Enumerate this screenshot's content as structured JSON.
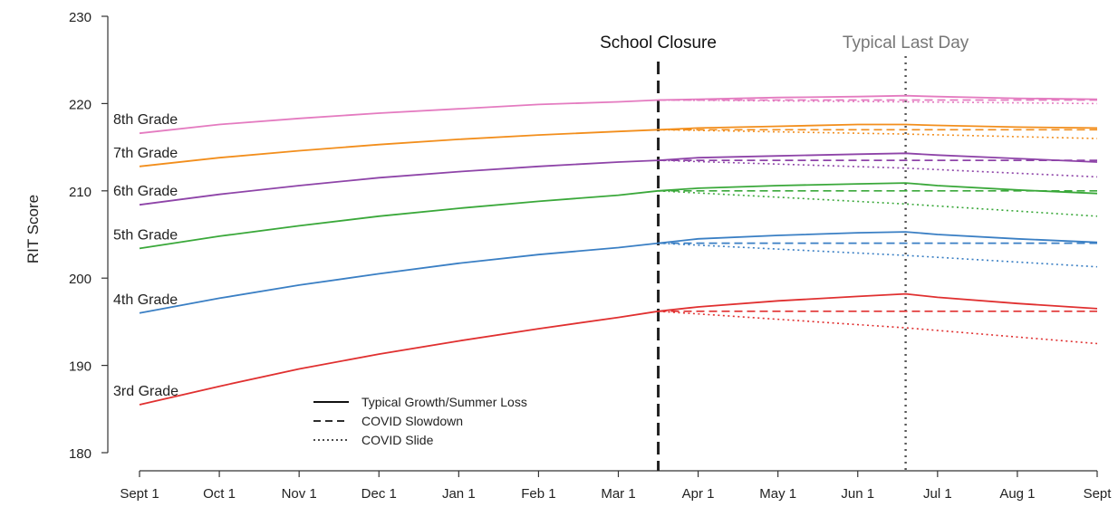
{
  "chart_data": {
    "type": "line",
    "title": "",
    "ylabel": "RIT Score",
    "xlabel": "",
    "ylim": [
      180,
      230
    ],
    "y_ticks": [
      180,
      190,
      200,
      210,
      220,
      230
    ],
    "x_ticks": [
      "Sept 1",
      "Oct 1",
      "Nov 1",
      "Dec 1",
      "Jan 1",
      "Feb 1",
      "Mar 1",
      "Apr 1",
      "May 1",
      "Jun 1",
      "Jul 1",
      "Aug 1",
      "Sept 1"
    ],
    "x_tick_texts": [
      "Sept 1",
      "Oct 1",
      "Nov 1",
      "Dec 1",
      "Jan 1",
      "Feb 1",
      "Mar 1",
      "Apr 1",
      "May 1",
      "Jun 1",
      "Jul 1",
      "Aug 1",
      "Sept"
    ],
    "events": [
      {
        "label": "School Closure",
        "date": "Mar 16",
        "style": "dashed",
        "color": "#222222"
      },
      {
        "label": "Typical Last Day",
        "date": "Jun 19",
        "style": "dotted",
        "color": "#555555"
      }
    ],
    "legend": [
      {
        "label": "Typical Growth/Summer Loss",
        "style": "solid"
      },
      {
        "label": "COVID Slowdown",
        "style": "dashed"
      },
      {
        "label": "COVID Slide",
        "style": "dotted"
      }
    ],
    "grades": [
      {
        "name": "8th Grade",
        "color": "#e47bc0",
        "typical": [
          [
            0,
            216.6
          ],
          [
            1,
            217.6
          ],
          [
            2,
            218.3
          ],
          [
            3,
            218.9
          ],
          [
            4,
            219.4
          ],
          [
            5,
            219.9
          ],
          [
            6,
            220.2
          ],
          [
            6.5,
            220.4
          ],
          [
            7,
            220.5
          ],
          [
            8,
            220.7
          ],
          [
            9,
            220.8
          ],
          [
            9.6,
            220.9
          ],
          [
            10,
            220.8
          ],
          [
            11,
            220.6
          ],
          [
            12,
            220.5
          ]
        ],
        "slowdown": [
          [
            6.5,
            220.4
          ],
          [
            12,
            220.4
          ]
        ],
        "slide": [
          [
            6.5,
            220.4
          ],
          [
            9.6,
            220.2
          ],
          [
            12,
            220.0
          ]
        ]
      },
      {
        "name": "7th Grade",
        "color": "#f28e1c",
        "typical": [
          [
            0,
            212.8
          ],
          [
            1,
            213.8
          ],
          [
            2,
            214.6
          ],
          [
            3,
            215.3
          ],
          [
            4,
            215.9
          ],
          [
            5,
            216.4
          ],
          [
            6,
            216.8
          ],
          [
            6.5,
            217.0
          ],
          [
            7,
            217.2
          ],
          [
            8,
            217.4
          ],
          [
            9,
            217.6
          ],
          [
            9.6,
            217.6
          ],
          [
            10,
            217.5
          ],
          [
            11,
            217.3
          ],
          [
            12,
            217.2
          ]
        ],
        "slowdown": [
          [
            6.5,
            217.0
          ],
          [
            12,
            217.0
          ]
        ],
        "slide": [
          [
            6.5,
            217.0
          ],
          [
            9.6,
            216.5
          ],
          [
            12,
            216.0
          ]
        ]
      },
      {
        "name": "6th Grade",
        "color": "#8e44a8",
        "typical": [
          [
            0,
            208.4
          ],
          [
            1,
            209.6
          ],
          [
            2,
            210.6
          ],
          [
            3,
            211.5
          ],
          [
            4,
            212.2
          ],
          [
            5,
            212.8
          ],
          [
            6,
            213.3
          ],
          [
            6.5,
            213.5
          ],
          [
            7,
            213.8
          ],
          [
            8,
            214.0
          ],
          [
            9,
            214.2
          ],
          [
            9.6,
            214.3
          ],
          [
            10,
            214.1
          ],
          [
            11,
            213.7
          ],
          [
            12,
            213.3
          ]
        ],
        "slowdown": [
          [
            6.5,
            213.5
          ],
          [
            12,
            213.5
          ]
        ],
        "slide": [
          [
            6.5,
            213.5
          ],
          [
            9.6,
            212.6
          ],
          [
            12,
            211.6
          ]
        ]
      },
      {
        "name": "5th Grade",
        "color": "#3aa83a",
        "typical": [
          [
            0,
            203.4
          ],
          [
            1,
            204.8
          ],
          [
            2,
            206.0
          ],
          [
            3,
            207.1
          ],
          [
            4,
            208.0
          ],
          [
            5,
            208.8
          ],
          [
            6,
            209.5
          ],
          [
            6.5,
            210.0
          ],
          [
            7,
            210.3
          ],
          [
            8,
            210.6
          ],
          [
            9,
            210.8
          ],
          [
            9.6,
            210.9
          ],
          [
            10,
            210.6
          ],
          [
            11,
            210.1
          ],
          [
            12,
            209.7
          ]
        ],
        "slowdown": [
          [
            6.5,
            210.0
          ],
          [
            12,
            210.0
          ]
        ],
        "slide": [
          [
            6.5,
            210.0
          ],
          [
            9.6,
            208.5
          ],
          [
            12,
            207.1
          ]
        ]
      },
      {
        "name": "4th Grade",
        "color": "#3a7fc4",
        "typical": [
          [
            0,
            196.0
          ],
          [
            1,
            197.7
          ],
          [
            2,
            199.2
          ],
          [
            3,
            200.5
          ],
          [
            4,
            201.7
          ],
          [
            5,
            202.7
          ],
          [
            6,
            203.5
          ],
          [
            6.5,
            204.0
          ],
          [
            7,
            204.5
          ],
          [
            8,
            204.9
          ],
          [
            9,
            205.2
          ],
          [
            9.6,
            205.3
          ],
          [
            10,
            205.0
          ],
          [
            11,
            204.5
          ],
          [
            12,
            204.1
          ]
        ],
        "slowdown": [
          [
            6.5,
            204.0
          ],
          [
            12,
            204.0
          ]
        ],
        "slide": [
          [
            6.5,
            204.0
          ],
          [
            9.6,
            202.6
          ],
          [
            12,
            201.3
          ]
        ]
      },
      {
        "name": "3rd Grade",
        "color": "#e03030",
        "typical": [
          [
            0,
            185.5
          ],
          [
            1,
            187.6
          ],
          [
            2,
            189.6
          ],
          [
            3,
            191.3
          ],
          [
            4,
            192.8
          ],
          [
            5,
            194.2
          ],
          [
            6,
            195.5
          ],
          [
            6.5,
            196.2
          ],
          [
            7,
            196.7
          ],
          [
            8,
            197.4
          ],
          [
            9,
            197.9
          ],
          [
            9.6,
            198.2
          ],
          [
            10,
            197.8
          ],
          [
            11,
            197.1
          ],
          [
            12,
            196.5
          ]
        ],
        "slowdown": [
          [
            6.5,
            196.2
          ],
          [
            12,
            196.2
          ]
        ],
        "slide": [
          [
            6.5,
            196.2
          ],
          [
            9.6,
            194.3
          ],
          [
            12,
            192.5
          ]
        ]
      }
    ]
  }
}
